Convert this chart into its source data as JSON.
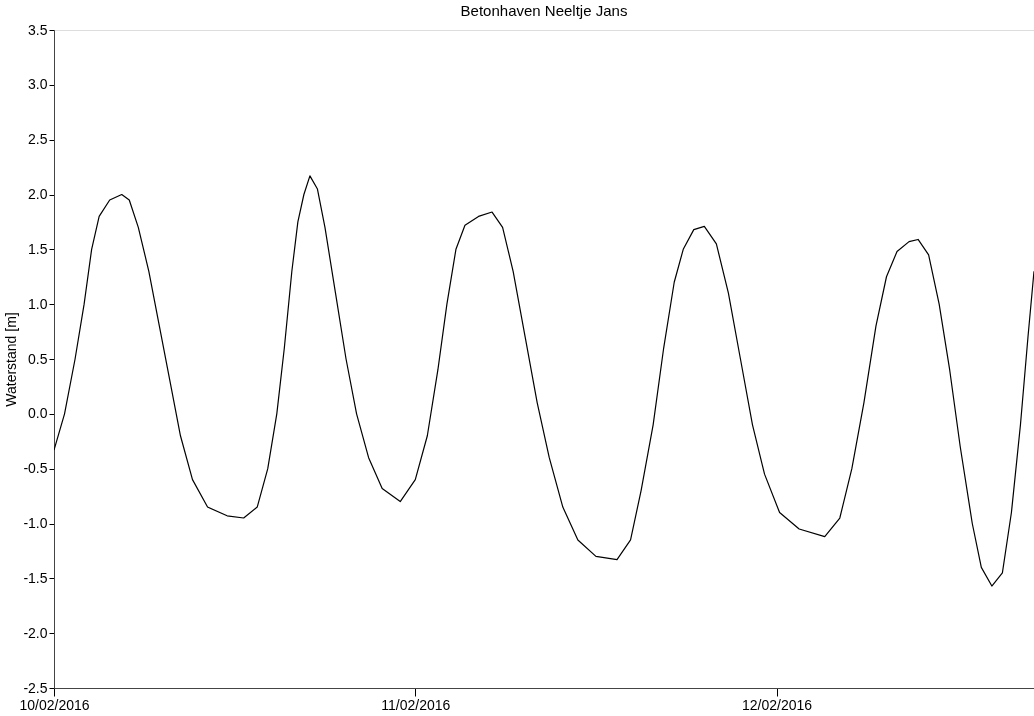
{
  "chart_data": {
    "type": "line",
    "title": "Betonhaven Neeltje Jans",
    "ylabel": "Waterstand [m]",
    "x": [
      "2016-02-10T00:00",
      "2016-02-10T00:42",
      "2016-02-10T01:24",
      "2016-02-10T02:00",
      "2016-02-10T02:30",
      "2016-02-10T03:00",
      "2016-02-10T03:42",
      "2016-02-10T04:30",
      "2016-02-10T05:00",
      "2016-02-10T05:36",
      "2016-02-10T06:18",
      "2016-02-10T07:00",
      "2016-02-10T07:42",
      "2016-02-10T08:24",
      "2016-02-10T09:12",
      "2016-02-10T10:12",
      "2016-02-10T11:30",
      "2016-02-10T12:36",
      "2016-02-10T13:30",
      "2016-02-10T14:12",
      "2016-02-10T14:48",
      "2016-02-10T15:18",
      "2016-02-10T15:48",
      "2016-02-10T16:12",
      "2016-02-10T16:36",
      "2016-02-10T17:00",
      "2016-02-10T17:30",
      "2016-02-10T18:00",
      "2016-02-10T18:42",
      "2016-02-10T19:24",
      "2016-02-10T20:06",
      "2016-02-10T20:54",
      "2016-02-10T21:48",
      "2016-02-10T23:00",
      "2016-02-11T00:00",
      "2016-02-11T00:48",
      "2016-02-11T01:30",
      "2016-02-11T02:06",
      "2016-02-11T02:42",
      "2016-02-11T03:18",
      "2016-02-11T04:12",
      "2016-02-11T05:06",
      "2016-02-11T05:48",
      "2016-02-11T06:30",
      "2016-02-11T07:18",
      "2016-02-11T08:06",
      "2016-02-11T08:54",
      "2016-02-11T09:48",
      "2016-02-11T10:48",
      "2016-02-11T12:00",
      "2016-02-11T13:24",
      "2016-02-11T14:18",
      "2016-02-11T15:00",
      "2016-02-11T15:48",
      "2016-02-11T16:30",
      "2016-02-11T17:12",
      "2016-02-11T17:48",
      "2016-02-11T18:30",
      "2016-02-11T19:12",
      "2016-02-11T20:00",
      "2016-02-11T20:48",
      "2016-02-11T21:36",
      "2016-02-11T22:24",
      "2016-02-11T23:12",
      "2016-02-12T00:12",
      "2016-02-12T01:30",
      "2016-02-12T03:12",
      "2016-02-12T04:12",
      "2016-02-12T05:00",
      "2016-02-12T05:48",
      "2016-02-12T06:36",
      "2016-02-12T07:18",
      "2016-02-12T08:00",
      "2016-02-12T08:48",
      "2016-02-12T09:24",
      "2016-02-12T10:06",
      "2016-02-12T10:48",
      "2016-02-12T11:30",
      "2016-02-12T12:12",
      "2016-02-12T13:00",
      "2016-02-12T13:36",
      "2016-02-12T14:18",
      "2016-02-12T15:00",
      "2016-02-12T15:36",
      "2016-02-12T16:12",
      "2016-02-12T16:42",
      "2016-02-12T17:06"
    ],
    "series": [
      {
        "color": "#000000",
        "values": [
          -0.33,
          0.0,
          0.5,
          1.0,
          1.5,
          1.8,
          1.95,
          2.0,
          1.95,
          1.7,
          1.3,
          0.8,
          0.3,
          -0.2,
          -0.6,
          -0.85,
          -0.93,
          -0.95,
          -0.85,
          -0.5,
          0.0,
          0.6,
          1.3,
          1.75,
          2.0,
          2.17,
          2.05,
          1.7,
          1.1,
          0.5,
          0.0,
          -0.4,
          -0.68,
          -0.8,
          -0.6,
          -0.2,
          0.4,
          1.0,
          1.5,
          1.72,
          1.8,
          1.84,
          1.7,
          1.3,
          0.7,
          0.1,
          -0.4,
          -0.85,
          -1.15,
          -1.3,
          -1.33,
          -1.15,
          -0.7,
          -0.1,
          0.6,
          1.2,
          1.5,
          1.68,
          1.71,
          1.55,
          1.1,
          0.5,
          -0.1,
          -0.55,
          -0.9,
          -1.05,
          -1.12,
          -0.95,
          -0.5,
          0.1,
          0.8,
          1.25,
          1.48,
          1.57,
          1.59,
          1.45,
          1.0,
          0.4,
          -0.3,
          -1.0,
          -1.4,
          -1.57,
          -1.45,
          -0.9,
          -0.1,
          0.7,
          1.3
        ]
      }
    ],
    "xlim": [
      "2016-02-10T00:00",
      "2016-02-12T17:06"
    ],
    "xticks": [
      {
        "value": "2016-02-10T00:00",
        "label": "10/02/2016"
      },
      {
        "value": "2016-02-11T00:00",
        "label": "11/02/2016"
      },
      {
        "value": "2016-02-12T00:00",
        "label": "12/02/2016"
      }
    ],
    "ylim": [
      -2.5,
      3.5
    ],
    "yticks": [
      {
        "value": -2.5,
        "label": "-2.5"
      },
      {
        "value": -2.0,
        "label": "-2.0"
      },
      {
        "value": -1.5,
        "label": "-1.5"
      },
      {
        "value": -1.0,
        "label": "-1.0"
      },
      {
        "value": -0.5,
        "label": "-0.5"
      },
      {
        "value": 0.0,
        "label": "0.0"
      },
      {
        "value": 0.5,
        "label": "0.5"
      },
      {
        "value": 1.0,
        "label": "1.0"
      },
      {
        "value": 1.5,
        "label": "1.5"
      },
      {
        "value": 2.0,
        "label": "2.0"
      },
      {
        "value": 2.5,
        "label": "2.5"
      },
      {
        "value": 3.0,
        "label": "3.0"
      },
      {
        "value": 3.5,
        "label": "3.5"
      }
    ],
    "grid": false,
    "line_style": "solid",
    "marker": "none"
  }
}
